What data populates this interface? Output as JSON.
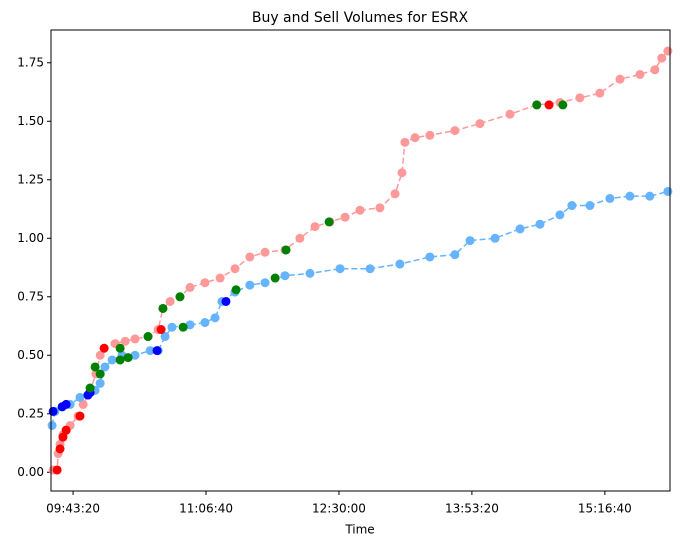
{
  "chart_data": {
    "type": "scatter-line",
    "title": "Buy and Sell Volumes for ESRX",
    "x_label": "Time",
    "xlim": [
      34170,
      57450
    ],
    "ylim": [
      -0.08,
      1.89
    ],
    "xticks": [
      {
        "value": 35000,
        "label": "09:43:20"
      },
      {
        "value": 40000,
        "label": "11:06:40"
      },
      {
        "value": 45000,
        "label": "12:30:00"
      },
      {
        "value": 50000,
        "label": "13:53:20"
      },
      {
        "value": 55000,
        "label": "15:16:40"
      }
    ],
    "yticks": [
      {
        "value": 0,
        "label": "0.00"
      },
      {
        "value": 0.25,
        "label": "0.25"
      },
      {
        "value": 0.5,
        "label": "0.50"
      },
      {
        "value": 0.75,
        "label": "0.75"
      },
      {
        "value": 1,
        "label": "1.00"
      },
      {
        "value": 1.25,
        "label": "1.25"
      },
      {
        "value": 1.5,
        "label": "1.50"
      },
      {
        "value": 1.75,
        "label": "1.75"
      }
    ],
    "series": [
      {
        "color": "#ff9999",
        "linestyle": "dashed",
        "x": [
          34250,
          34400,
          34440,
          34510,
          34620,
          34740,
          34890,
          35190,
          35380,
          35640,
          35860,
          36020,
          36170,
          36580,
          36960,
          37330,
          37820,
          38200,
          38380,
          38650,
          39020,
          39400,
          39960,
          40530,
          41090,
          41650,
          42220,
          42970,
          43530,
          44100,
          44660,
          45230,
          45790,
          46540,
          47110,
          47370,
          47480,
          47860,
          48420,
          49360,
          50300,
          51430,
          52440,
          53310,
          54060,
          54810,
          55570,
          56320,
          56880,
          57140,
          57370
        ],
        "values": [
          0.01,
          0.01,
          0.08,
          0.12,
          0.16,
          0.18,
          0.2,
          0.24,
          0.29,
          0.35,
          0.42,
          0.5,
          0.53,
          0.55,
          0.56,
          0.57,
          0.58,
          0.61,
          0.7,
          0.73,
          0.75,
          0.79,
          0.81,
          0.83,
          0.87,
          0.92,
          0.94,
          0.95,
          1.0,
          1.05,
          1.07,
          1.09,
          1.12,
          1.13,
          1.19,
          1.28,
          1.41,
          1.43,
          1.44,
          1.46,
          1.49,
          1.53,
          1.57,
          1.58,
          1.6,
          1.62,
          1.68,
          1.7,
          1.72,
          1.77,
          1.8
        ]
      },
      {
        "color": "#66b3ff",
        "linestyle": "dashed",
        "x": [
          34210,
          34320,
          34590,
          34890,
          35260,
          35560,
          35830,
          36020,
          36200,
          36470,
          36840,
          37330,
          37900,
          38200,
          38460,
          38720,
          39400,
          39960,
          40340,
          40600,
          41090,
          41650,
          42220,
          42970,
          43910,
          45040,
          46170,
          47290,
          48420,
          49360,
          49930,
          50870,
          51810,
          52560,
          53310,
          53760,
          54440,
          55190,
          55940,
          56690,
          57370
        ],
        "values": [
          0.2,
          0.26,
          0.28,
          0.29,
          0.32,
          0.33,
          0.35,
          0.38,
          0.45,
          0.48,
          0.5,
          0.5,
          0.52,
          0.52,
          0.58,
          0.62,
          0.63,
          0.64,
          0.66,
          0.73,
          0.77,
          0.8,
          0.81,
          0.84,
          0.85,
          0.87,
          0.87,
          0.89,
          0.92,
          0.93,
          0.99,
          1.0,
          1.04,
          1.06,
          1.1,
          1.14,
          1.14,
          1.17,
          1.18,
          1.18,
          1.2
        ]
      },
      {
        "color": "#ff0000",
        "linestyle": "none",
        "x": [
          34400,
          34510,
          34620,
          34740,
          35260,
          36170,
          38310,
          52900
        ],
        "values": [
          0.01,
          0.1,
          0.15,
          0.18,
          0.24,
          0.53,
          0.61,
          1.57
        ]
      },
      {
        "color": "#0000ff",
        "linestyle": "none",
        "x": [
          34250,
          34590,
          34740,
          35560,
          35640,
          38160,
          40750
        ],
        "values": [
          0.26,
          0.28,
          0.29,
          0.33,
          0.34,
          0.52,
          0.73
        ]
      },
      {
        "color": "#008000",
        "linestyle": "none",
        "x": [
          35640,
          35830,
          36020,
          36770,
          36770,
          37070,
          37820,
          38380,
          39020,
          39140,
          41130,
          42600,
          43010,
          44630,
          52440,
          53420
        ],
        "values": [
          0.36,
          0.45,
          0.42,
          0.53,
          0.48,
          0.49,
          0.58,
          0.7,
          0.75,
          0.62,
          0.78,
          0.83,
          0.95,
          1.07,
          1.57,
          1.57
        ]
      }
    ]
  }
}
